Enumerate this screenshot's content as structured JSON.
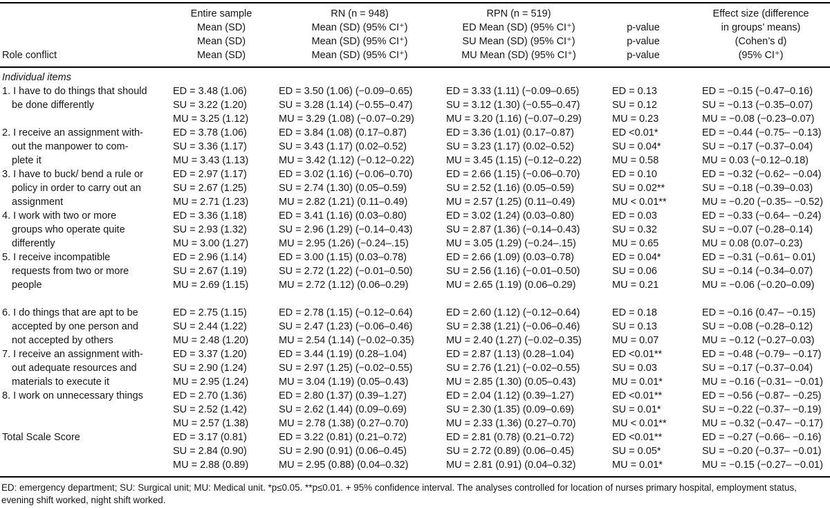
{
  "header": {
    "role_conflict": "Role conflict",
    "entire": [
      "Entire sample",
      "Mean (SD)",
      "Mean (SD)",
      "Mean (SD)"
    ],
    "rn": [
      "RN (n = 948)",
      "Mean (SD) (95% CI⁺)",
      "Mean (SD) (95% CI⁺)",
      "Mean (SD) (95% CI⁺)"
    ],
    "rpn": [
      "RPN (n = 519)",
      "ED Mean (SD) (95% CI⁺)",
      "SU Mean (SD) (95% CI⁺)",
      "MU Mean (SD) (95% CI⁺)"
    ],
    "pvalue": [
      "",
      "p-value",
      "p-value",
      "p-value"
    ],
    "effect": [
      "Effect size (difference",
      "in groups’ means)",
      "(Cohen’s d)",
      "(95% CI⁺)"
    ]
  },
  "section_label": "Individual items",
  "rows": [
    {
      "label": [
        "1. I have to do things that should",
        "be done differently"
      ],
      "entire": [
        "ED = 3.48 (1.06)",
        "SU = 3.22 (1.20)",
        "MU = 3.25 (1.12)"
      ],
      "rn": [
        "ED = 3.50 (1.06) (−0.09–0.65)",
        "SU = 3.28 (1.14) (−0.55–0.47)",
        "MU = 3.29 (1.08) (−0.07–0.29)"
      ],
      "rpn": [
        "ED = 3.33 (1.11) (−0.09–0.65)",
        "SU = 3.12 (1.30) (−0.55–0.47)",
        "MU = 3.20 (1.16) (−0.07–0.29)"
      ],
      "p": [
        "ED = 0.13",
        "SU = 0.12",
        "MU = 0.23"
      ],
      "effect": [
        "ED = −0.15 (−0.47–0.16)",
        "SU = −0.13 (−0.35–0.07)",
        "MU = −0.08 (−0.23–0.07)"
      ]
    },
    {
      "label": [
        "2. I receive an assignment with-",
        "out the manpower to com-",
        "plete it"
      ],
      "entire": [
        "ED = 3.78 (1.06)",
        "SU = 3.36 (1.17)",
        "MU = 3.43 (1.13)"
      ],
      "rn": [
        "ED = 3.84 (1.08) (0.17–0.87)",
        "SU = 3.43 (1.17) (0.02–0.52)",
        "MU = 3.42 (1.12) (−0.12–0.22)"
      ],
      "rpn": [
        "ED = 3.36 (1.01) (0.17–0.87)",
        "SU = 3.23 (1.17) (0.02–0.52)",
        "MU = 3.45 (1.15) (−0.12–0.22)"
      ],
      "p": [
        "ED <0.01*",
        "SU = 0.04*",
        "MU = 0.58"
      ],
      "effect": [
        "ED = −0.44 (−0.75– −0.13)",
        "SU = −0.17 (−0.37–0.04)",
        "MU = 0.03 (−0.12–0.18)"
      ]
    },
    {
      "label": [
        "3. I have to buck/ bend a rule or",
        "policy in order to carry out an",
        "assignment"
      ],
      "entire": [
        "ED = 2.97 (1.17)",
        "SU = 2.67 (1.25)",
        "MU = 2.71 (1.23)"
      ],
      "rn": [
        "ED = 3.02 (1.16) (−0.06–0.70)",
        "SU = 2.74 (1.30) (0.05–0.59)",
        "MU = 2.82 (1.21) (0.11–0.49)"
      ],
      "rpn": [
        "ED = 2.66 (1.15) (−0.06–0.70)",
        "SU = 2.52 (1.16) (0.05–0.59)",
        "MU = 2.57 (1.25) (0.11–0.49)"
      ],
      "p": [
        "ED = 0.10",
        "SU = 0.02**",
        "MU < 0.01**"
      ],
      "effect": [
        "ED = −0.32 (−0.62– −0.04)",
        "SU = −0.18 (−0.39–0.03)",
        "MU = −0.20 (−0.35– −0.52)"
      ]
    },
    {
      "label": [
        "4. I work with two or more",
        "groups who operate quite",
        "differently"
      ],
      "entire": [
        "ED = 3.36 (1.18)",
        "SU = 2.93 (1.32)",
        "MU = 3.00 (1.27)"
      ],
      "rn": [
        "ED = 3.41 (1.16) (0.03–0.80)",
        "SU = 2.96 (1.29) (−0.14–0.43)",
        "MU = 2.95 (1.26) (−0.24–.15)"
      ],
      "rpn": [
        "ED = 3.02 (1.24) (0.03–0.80)",
        "SU = 2.87 (1.36) (−0.14–0.43)",
        "MU = 3.05 (1.29) (−0.24–.15)"
      ],
      "p": [
        "ED = 0.03",
        "SU = 0.32",
        "MU = 0.65"
      ],
      "effect": [
        "ED = −0.33 (−0.64– −0.24)",
        "SU = −0.07 (−0.28–0.14)",
        "MU = 0.08 (0.07–0.23)"
      ]
    },
    {
      "label": [
        "5. I receive incompatible",
        "requests from two or more",
        "people"
      ],
      "entire": [
        "ED = 2.96 (1.14)",
        "SU = 2.67 (1.19)",
        "MU = 2.69 (1.15)"
      ],
      "rn": [
        "ED = 3.00 (1.15) (0.03–0.78)",
        "SU = 2.72 (1.22) (−0.01–0.50)",
        "MU = 2.72 (1.12) (0.06–0.29)"
      ],
      "rpn": [
        "ED = 2.66 (1.09) (0.03–0.78)",
        "SU = 2.56 (1.16) (−0.01–0.50)",
        "MU = 2.65 (1.19) (0.06–0.29)"
      ],
      "p": [
        "ED = 0.04*",
        "SU = 0.06",
        "MU = 0.21"
      ],
      "effect": [
        "ED = −0.31 (−0.61– 0.01)",
        "SU = −0.14 (−0.34–0.07)",
        "MU = −0.06 (−0.20–0.09)"
      ]
    },
    {
      "gap_before": true,
      "label": [
        "6. I do things that are apt to be",
        "accepted by one person and",
        "not accepted by others"
      ],
      "entire": [
        "ED = 2.75 (1.15)",
        "SU = 2.44 (1.22)",
        "MU = 2.48 (1.20)"
      ],
      "rn": [
        "ED = 2.78 (1.15) (−0.12–0.64)",
        "SU = 2.47 (1.23) (−0.06–0.46)",
        "MU = 2.54 (1.14) (−0.02–0.35)"
      ],
      "rpn": [
        "ED = 2.60 (1.12) (−0.12–0.64)",
        "SU = 2.38 (1.21) (−0.06–0.46)",
        "MU = 2.40 (1.27) (−0.02–0.35)"
      ],
      "p": [
        "ED = 0.18",
        "SU = 0.13",
        "MU = 0.07"
      ],
      "effect": [
        "ED = −0.16 (0.47– −0.15)",
        "SU = −0.08 (−0.28–0.12)",
        "MU = −0.12 (−0.27–0.03)"
      ]
    },
    {
      "label": [
        "7. I receive an assignment with-",
        "out adequate resources and",
        "materials to execute it"
      ],
      "entire": [
        "ED = 3.37 (1.20)",
        "SU = 2.90 (1.24)",
        "MU = 2.95 (1.24)"
      ],
      "rn": [
        "ED = 3.44 (1.19) (0.28–1.04)",
        "SU = 2.97 (1.25) (−0.02–0.55)",
        "MU = 3.04 (1.19) (0.05–0.43)"
      ],
      "rpn": [
        "ED = 2.87 (1.13) (0.28–1.04)",
        "SU = 2.76 (1.21) (−0.02–0.55)",
        "MU = 2.85 (1.30) (0.05–0.43)"
      ],
      "p": [
        "ED <0.01**",
        "SU = 0.03",
        "MU = 0.01*"
      ],
      "effect": [
        "ED = −0.48 (−0.79– −0.17)",
        "SU = −0.17 (−0.37–0.04)",
        "MU = −0.16 (−0.31– −0.01)"
      ]
    },
    {
      "label": [
        "8. I work on unnecessary things"
      ],
      "entire": [
        "ED = 2.70 (1.36)",
        "SU = 2.52 (1.42)",
        "MU = 2.57 (1.38)"
      ],
      "rn": [
        "ED = 2.80 (1.37) (0.39–1.27)",
        "SU = 2.62 (1.44) (0.09–0.69)",
        "MU = 2.78 (1.38) (0.27–0.70)"
      ],
      "rpn": [
        "ED = 2.04 (1.12) (0.39–1.27)",
        "SU = 2.30 (1.35) (0.09–0.69)",
        "MU = 2.33 (1.36) (0.27–0.70)"
      ],
      "p": [
        "ED <0.01**",
        "SU = 0.01*",
        "MU < 0.01**"
      ],
      "effect": [
        "ED = −0.56 (−0.87– −0.25)",
        "SU = −0.22 (−0.37– −0.19)",
        "MU = −0.32 (−0.47– −0.17)"
      ]
    },
    {
      "label": [
        "Total Scale Score"
      ],
      "entire": [
        "ED = 3.17 (0.81)",
        "SU = 2.84 (0.90)",
        "MU = 2.88 (0.89)"
      ],
      "rn": [
        "ED = 3.22 (0.81) (0.21–0.72)",
        "SU = 2.90 (0.91) (0.06–0.45)",
        "MU = 2.95 (0.88) (0.04–0.32)"
      ],
      "rpn": [
        "ED = 2.81 (0.78) (0.21–0.72)",
        "SU = 2.72 (0.89) (0.06–0.45)",
        "MU = 2.81 (0.91) (0.04–0.32)"
      ],
      "p": [
        "ED <0.01**",
        "SU = 0.05*",
        "MU = 0.01*"
      ],
      "effect": [
        "ED = −0.27 (−0.66– −0.16)",
        "SU = −0.20 (−0.37– −0.01)",
        "MU = −0.15 (−0.27– −0.01)"
      ]
    }
  ],
  "footnote": "ED: emergency department; SU: Surgical unit; MU: Medical unit. *p≤0.05. **p≤0.01. + 95% confidence interval. The analyses controlled for location of nurses primary hospital, employment status, evening shift worked, night shift worked."
}
